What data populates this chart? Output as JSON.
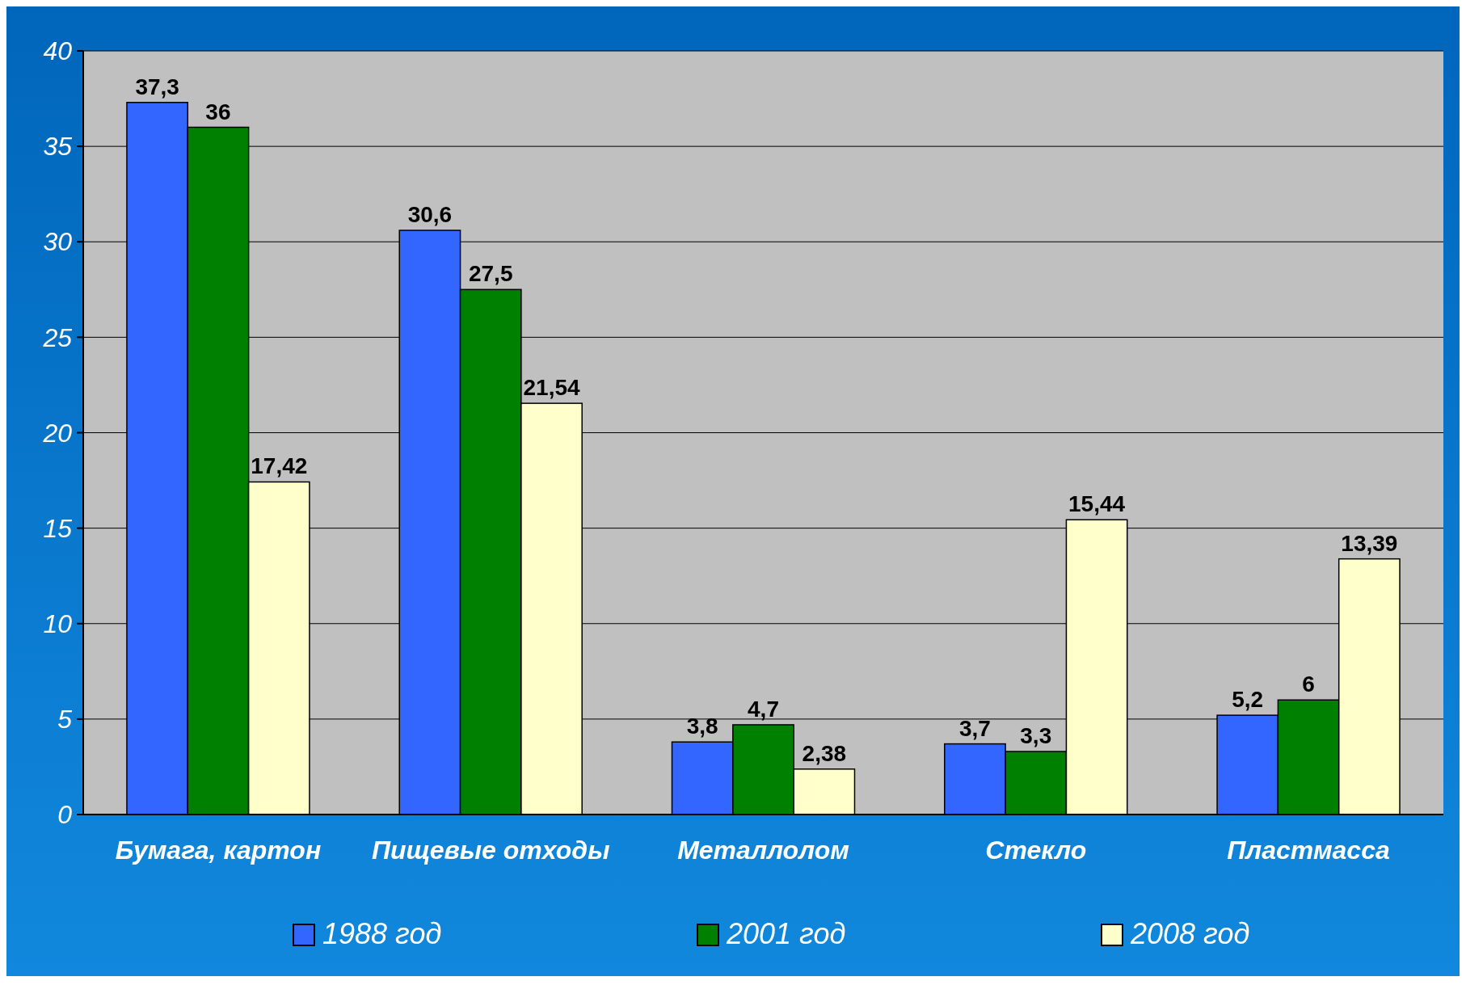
{
  "chart_data": {
    "type": "bar",
    "categories": [
      "Бумага, картон",
      "Пищевые отходы",
      "Металлолом",
      "Стекло",
      "Пластмасса"
    ],
    "series": [
      {
        "name": "1988 год",
        "color": "#3366ff",
        "values": [
          37.3,
          30.6,
          3.8,
          3.7,
          5.2
        ],
        "value_labels": [
          "37,3",
          "30,6",
          "3,8",
          "3,7",
          "5,2"
        ]
      },
      {
        "name": "2001 год",
        "color": "#008000",
        "values": [
          36,
          27.5,
          4.7,
          3.3,
          6
        ],
        "value_labels": [
          "36",
          "27,5",
          "4,7",
          "3,3",
          "6"
        ]
      },
      {
        "name": "2008 год",
        "color": "#ffffcc",
        "values": [
          17.42,
          21.54,
          2.38,
          15.44,
          13.39
        ],
        "value_labels": [
          "17,42",
          "21,54",
          "2,38",
          "15,44",
          "13,39"
        ]
      }
    ],
    "ylim": [
      0,
      40
    ],
    "yticks": [
      0,
      5,
      10,
      15,
      20,
      25,
      30,
      35,
      40
    ],
    "grid": "y",
    "legend": "bottom"
  }
}
